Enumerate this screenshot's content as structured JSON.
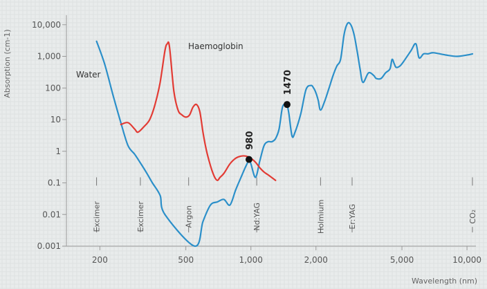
{
  "chart_data": {
    "type": "line",
    "xlabel": "Wavelength (nm)",
    "ylabel": "Absorption (cm-1)",
    "x_scale": "log",
    "y_scale": "log",
    "xlim": [
      140,
      11000
    ],
    "ylim": [
      0.001,
      20000
    ],
    "x_ticks": [
      {
        "value": 200,
        "label": "200"
      },
      {
        "value": 500,
        "label": "500"
      },
      {
        "value": 1000,
        "label": "1,000"
      },
      {
        "value": 2000,
        "label": "2,000"
      },
      {
        "value": 5000,
        "label": "5,000"
      },
      {
        "value": 10000,
        "label": "10,000"
      }
    ],
    "y_ticks": [
      {
        "value": 10000,
        "label": "10,000"
      },
      {
        "value": 1000,
        "label": "1,000"
      },
      {
        "value": 100,
        "label": "100"
      },
      {
        "value": 10,
        "label": "10"
      },
      {
        "value": 1,
        "label": "1"
      },
      {
        "value": 0.1,
        "label": "0.1"
      },
      {
        "value": 0.01,
        "label": "0.01"
      },
      {
        "value": 0.001,
        "label": "0.001"
      }
    ],
    "series": [
      {
        "name": "Water",
        "color": "#2b8fc9",
        "x": [
          193,
          210,
          230,
          250,
          270,
          290,
          310,
          330,
          350,
          380,
          400,
          550,
          600,
          650,
          700,
          750,
          800,
          850,
          900,
          950,
          980,
          1000,
          1050,
          1100,
          1150,
          1200,
          1250,
          1300,
          1350,
          1400,
          1450,
          1470,
          1500,
          1550,
          1600,
          1700,
          1800,
          1900,
          1950,
          2000,
          2050,
          2100,
          2200,
          2300,
          2400,
          2500,
          2600,
          2700,
          2800,
          2900,
          3000,
          3100,
          3200,
          3300,
          3500,
          3700,
          3800,
          4000,
          4200,
          4400,
          4500,
          4600,
          4700,
          4900,
          5100,
          5500,
          5800,
          6000,
          6300,
          6600,
          7000,
          8000,
          9000,
          10000,
          10600
        ],
        "y": [
          3000,
          600,
          60,
          8,
          1.5,
          0.8,
          0.4,
          0.2,
          0.1,
          0.04,
          0.01,
          0.001,
          0.006,
          0.02,
          0.025,
          0.03,
          0.02,
          0.06,
          0.15,
          0.35,
          0.5,
          0.4,
          0.15,
          0.5,
          1.5,
          2,
          2,
          2.5,
          5,
          25,
          30,
          30,
          15,
          3,
          4,
          15,
          90,
          120,
          100,
          70,
          40,
          20,
          40,
          100,
          250,
          500,
          800,
          5000,
          11000,
          10000,
          5000,
          1500,
          400,
          150,
          300,
          250,
          200,
          200,
          300,
          400,
          800,
          600,
          450,
          500,
          700,
          1500,
          2500,
          900,
          1200,
          1200,
          1300,
          1100,
          1000,
          1100,
          1200
        ]
      },
      {
        "name": "Haemoglobin",
        "color": "#e23b34",
        "x": [
          250,
          270,
          290,
          300,
          320,
          340,
          360,
          380,
          400,
          410,
          420,
          440,
          460,
          480,
          500,
          520,
          540,
          560,
          580,
          600,
          620,
          640,
          660,
          680,
          700,
          720,
          750,
          800,
          850,
          900,
          950,
          1000,
          1050,
          1100,
          1150,
          1200,
          1300
        ],
        "y": [
          7,
          8,
          5,
          4,
          6,
          10,
          30,
          150,
          1500,
          2500,
          2000,
          80,
          20,
          14,
          12,
          14,
          25,
          30,
          18,
          4,
          1.2,
          0.5,
          0.25,
          0.15,
          0.12,
          0.15,
          0.2,
          0.4,
          0.6,
          0.7,
          0.7,
          0.6,
          0.45,
          0.3,
          0.22,
          0.18,
          0.12
        ]
      }
    ],
    "points": [
      {
        "label": "980",
        "x": 980,
        "y": 0.55
      },
      {
        "label": "1470",
        "x": 1470,
        "y": 30
      }
    ],
    "lasers": [
      {
        "label": "Excimer",
        "x": 193
      },
      {
        "label": "Excimer",
        "x": 308
      },
      {
        "label": "Argon",
        "x": 515
      },
      {
        "label": "Nd:YAG",
        "x": 1064
      },
      {
        "label": "Holmium",
        "x": 2100
      },
      {
        "label": "Er:YAG",
        "x": 2940
      },
      {
        "label": "CO₂",
        "x": 10600
      }
    ],
    "grid": false,
    "legend": "inline labels"
  }
}
